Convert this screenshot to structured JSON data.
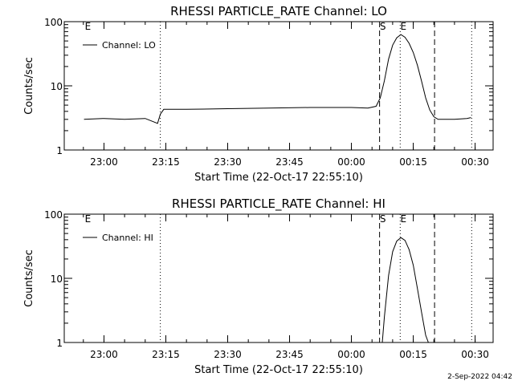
{
  "chart_data": [
    {
      "type": "line",
      "title": "RHESSI PARTICLE_RATE Channel: LO",
      "xlabel": "Start Time (22-Oct-17 22:55:10)",
      "ylabel": "Counts/sec",
      "y_scale": "log",
      "ylim": [
        1,
        100
      ],
      "xlim_minutes_after_start": [
        -4.8,
        99.2
      ],
      "x_tick_labels": [
        "23:00",
        "23:15",
        "23:30",
        "23:45",
        "00:00",
        "00:15",
        "00:30"
      ],
      "y_tick_labels": [
        "1",
        "10",
        "100"
      ],
      "grid": false,
      "legend": {
        "placement": "top-left",
        "entries": [
          "Channel: LO"
        ]
      },
      "markers": [
        {
          "label": "E",
          "time": "22:55:10",
          "style": "none"
        },
        {
          "label": "",
          "time": "23:13:40",
          "style": "dotted"
        },
        {
          "label": "S",
          "time": "00:06:50",
          "style": "dashed"
        },
        {
          "label": "E",
          "time": "00:11:50",
          "style": "dotted"
        },
        {
          "label": "",
          "time": "00:20:10",
          "style": "dashed"
        },
        {
          "label": "",
          "time": "00:29:10",
          "style": "dotted"
        }
      ],
      "series": [
        {
          "name": "Channel: LO",
          "x": [
            "22:55:10",
            "23:00:00",
            "23:05:00",
            "23:10:00",
            "23:13:00",
            "23:13:40",
            "23:14:30",
            "23:20:00",
            "23:30:00",
            "23:40:00",
            "23:50:00",
            "00:00:00",
            "00:04:00",
            "00:06:00",
            "00:07:00",
            "00:08:00",
            "00:09:00",
            "00:10:00",
            "00:11:00",
            "00:12:00",
            "00:13:00",
            "00:14:00",
            "00:15:00",
            "00:16:00",
            "00:17:00",
            "00:18:00",
            "00:19:00",
            "00:20:00",
            "00:21:00",
            "00:25:00",
            "00:28:00",
            "00:29:00"
          ],
          "y": [
            3.0,
            3.1,
            3.0,
            3.1,
            2.6,
            3.6,
            4.3,
            4.3,
            4.4,
            4.5,
            4.6,
            4.6,
            4.5,
            4.8,
            6.5,
            12,
            26,
            43,
            56,
            63,
            57,
            46,
            33,
            21,
            12,
            6.5,
            4.2,
            3.3,
            3.0,
            3.0,
            3.1,
            3.2
          ]
        }
      ]
    },
    {
      "type": "line",
      "title": "RHESSI PARTICLE_RATE Channel: HI",
      "xlabel": "Start Time (22-Oct-17 22:55:10)",
      "ylabel": "Counts/sec",
      "y_scale": "log",
      "ylim": [
        1,
        100
      ],
      "xlim_minutes_after_start": [
        -4.8,
        99.2
      ],
      "x_tick_labels": [
        "23:00",
        "23:15",
        "23:30",
        "23:45",
        "00:00",
        "00:15",
        "00:30"
      ],
      "y_tick_labels": [
        "1",
        "10",
        "100"
      ],
      "grid": false,
      "legend": {
        "placement": "top-left",
        "entries": [
          "Channel: HI"
        ]
      },
      "markers": [
        {
          "label": "E",
          "time": "22:55:10",
          "style": "none"
        },
        {
          "label": "",
          "time": "23:13:40",
          "style": "dotted"
        },
        {
          "label": "S",
          "time": "00:06:50",
          "style": "dashed"
        },
        {
          "label": "E",
          "time": "00:11:50",
          "style": "dotted"
        },
        {
          "label": "",
          "time": "00:20:10",
          "style": "dashed"
        },
        {
          "label": "",
          "time": "00:29:10",
          "style": "dotted"
        }
      ],
      "series": [
        {
          "name": "Channel: HI",
          "x": [
            "00:07:30",
            "00:08:00",
            "00:09:00",
            "00:10:00",
            "00:11:00",
            "00:12:00",
            "00:13:00",
            "00:14:00",
            "00:15:00",
            "00:16:00",
            "00:17:00",
            "00:18:00",
            "00:18:40"
          ],
          "y": [
            1.0,
            2.5,
            11,
            26,
            38,
            43,
            39,
            28,
            16,
            7,
            3,
            1.3,
            1.0
          ]
        }
      ]
    }
  ],
  "footer": {
    "timestamp": "2-Sep-2022 04:42"
  }
}
